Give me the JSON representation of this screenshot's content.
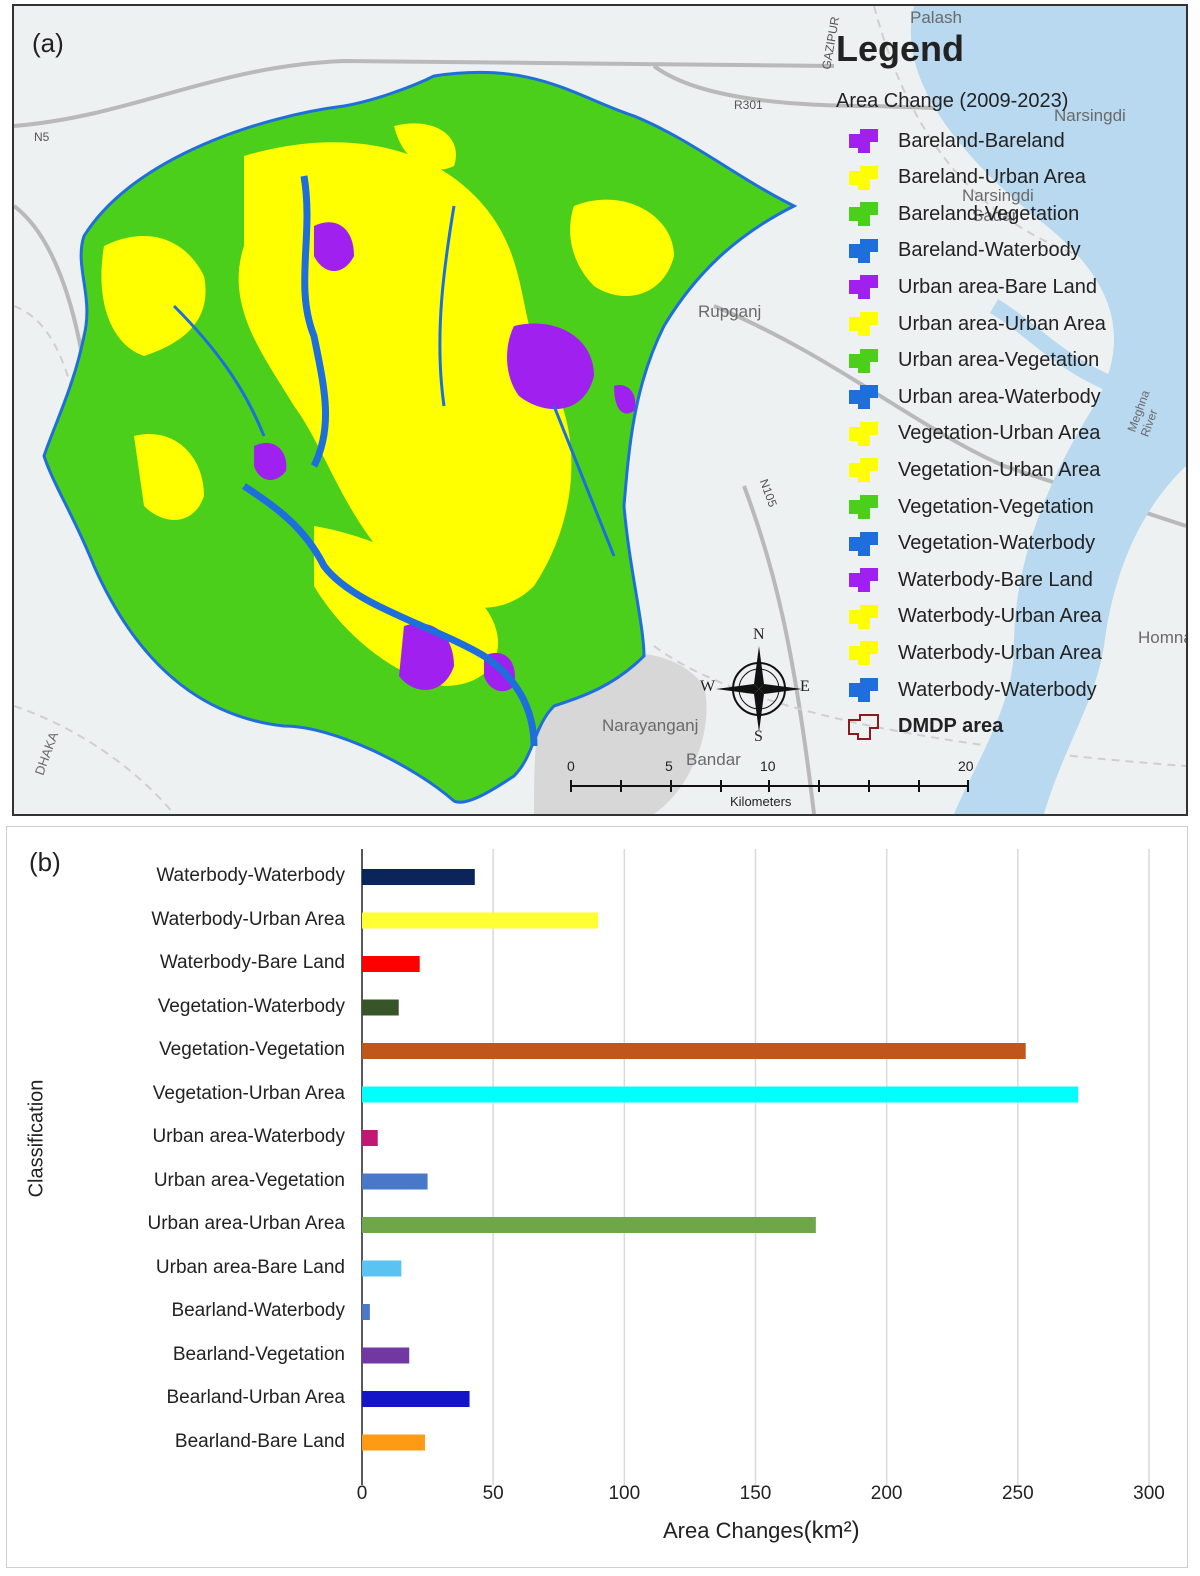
{
  "panel_a": {
    "label": "(a)",
    "legend": {
      "title": "Legend",
      "subtitle": "Area Change (2009-2023)",
      "items": [
        {
          "label": "Bareland-Bareland",
          "color": "#a020f0"
        },
        {
          "label": "Bareland-Urban Area",
          "color": "#ffff00"
        },
        {
          "label": "Bareland-Vegetation",
          "color": "#4ccf1a"
        },
        {
          "label": "Bareland-Waterbody",
          "color": "#1e6fdc"
        },
        {
          "label": "Urban area-Bare Land",
          "color": "#a020f0"
        },
        {
          "label": "Urban area-Urban Area",
          "color": "#ffff00"
        },
        {
          "label": "Urban area-Vegetation",
          "color": "#4ccf1a"
        },
        {
          "label": "Urban area-Waterbody",
          "color": "#1e6fdc"
        },
        {
          "label": "Vegetation-Urban Area",
          "color": "#ffff00"
        },
        {
          "label": "Vegetation-Urban Area",
          "color": "#ffff00"
        },
        {
          "label": "Vegetation-Vegetation",
          "color": "#4ccf1a"
        },
        {
          "label": "Vegetation-Waterbody",
          "color": "#1e6fdc"
        },
        {
          "label": "Waterbody-Bare Land",
          "color": "#a020f0"
        },
        {
          "label": "Waterbody-Urban Area",
          "color": "#ffff00"
        },
        {
          "label": "Waterbody-Urban Area",
          "color": "#ffff00"
        },
        {
          "label": "Waterbody-Waterbody",
          "color": "#1e6fdc"
        }
      ],
      "boundary_label": "DMDP area",
      "boundary_color": "#8b1a1a"
    },
    "basemap_places": [
      "Palash",
      "Narsingdi",
      "Narsingdi",
      "Sadar",
      "Rupganj",
      "Homna",
      "Bandar",
      "Narayanganj",
      "DHAKA",
      "Meghna River"
    ],
    "basemap_roads": [
      "N5",
      "R301",
      "N105",
      "GAZIPUR"
    ],
    "compass": {
      "n": "N",
      "s": "S",
      "e": "E",
      "w": "W"
    },
    "scale": {
      "ticks": [
        "0",
        "5",
        "10",
        "20"
      ],
      "unit": "Kilometers"
    }
  },
  "chart_data": {
    "type": "bar",
    "orientation": "horizontal",
    "label": "(b)",
    "categories": [
      "Waterbody-Waterbody",
      "Waterbody-Urban Area",
      "Waterbody-Bare Land",
      "Vegetation-Waterbody",
      "Vegetation-Vegetation",
      "Vegetation-Urban Area",
      "Urban area-Waterbody",
      "Urban area-Vegetation",
      "Urban area-Urban Area",
      "Urban area-Bare Land",
      "Bearland-Waterbody",
      "Bearland-Vegetation",
      "Bearland-Urban Area",
      "Bearland-Bare Land"
    ],
    "values": [
      43,
      90,
      22,
      14,
      253,
      273,
      6,
      25,
      173,
      15,
      3,
      18,
      41,
      24
    ],
    "colors": [
      "#0b2459",
      "#ffff33",
      "#ff0000",
      "#38552a",
      "#c0561c",
      "#00ffff",
      "#c21874",
      "#4a78c9",
      "#6fa64a",
      "#5bc3f2",
      "#4a78c9",
      "#7138a4",
      "#1414c8",
      "#ff9a14"
    ],
    "xlabel": "Area Changes",
    "xlabel_unit": "(km²)",
    "ylabel": "Classification",
    "xlim": [
      0,
      300
    ],
    "xticks": [
      "0",
      "50",
      "100",
      "150",
      "200",
      "250",
      "300"
    ],
    "grid": "vertical"
  }
}
